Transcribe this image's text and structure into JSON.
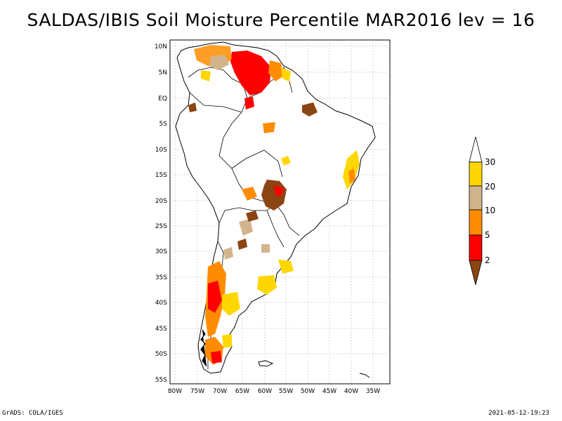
{
  "title": "SALDAS/IBIS Soil Moisture Percentile MAR2016 lev = 16",
  "lat_axis": [
    "10N",
    "5N",
    "EQ",
    "5S",
    "10S",
    "15S",
    "20S",
    "25S",
    "30S",
    "35S",
    "40S",
    "45S",
    "50S",
    "55S"
  ],
  "lon_axis": [
    "80W",
    "75W",
    "70W",
    "65W",
    "60W",
    "55W",
    "50W",
    "45W",
    "40W",
    "35W"
  ],
  "legend": {
    "labels": [
      "30",
      "20",
      "10",
      "5",
      "2"
    ],
    "colors": {
      "above30": "#ffffff",
      "c20_30": "#ffd700",
      "c10_20": "#d2b48c",
      "c5_10": "#ff8c00",
      "c2_5": "#ff0000",
      "below2": "#8b4513"
    }
  },
  "footer": {
    "left": "GrADS: COLA/IGES",
    "right": "2021-05-12-19:23"
  }
}
